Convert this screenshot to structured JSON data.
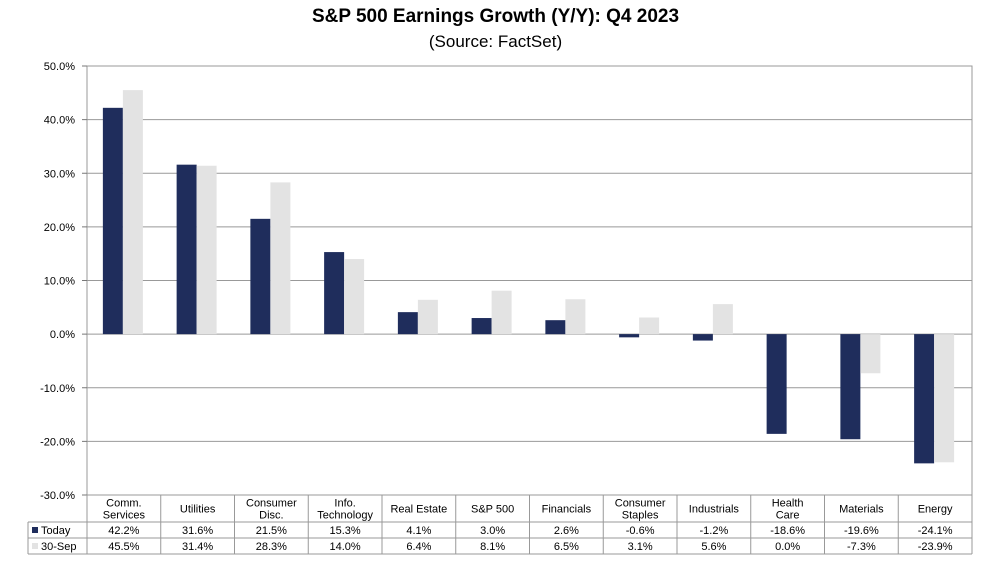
{
  "chart_data": {
    "type": "bar",
    "title": "S&P 500 Earnings Growth (Y/Y): Q4 2023",
    "subtitle": "(Source: FactSet)",
    "categories": [
      [
        "Comm.",
        "Services"
      ],
      [
        "Utilities"
      ],
      [
        "Consumer",
        "Disc."
      ],
      [
        "Info.",
        "Technology"
      ],
      [
        "Real Estate"
      ],
      [
        "S&P 500"
      ],
      [
        "Financials"
      ],
      [
        "Consumer",
        "Staples"
      ],
      [
        "Industrials"
      ],
      [
        "Health",
        "Care"
      ],
      [
        "Materials"
      ],
      [
        "Energy"
      ]
    ],
    "series": [
      {
        "name": "Today",
        "color": "#1f2d5c",
        "values": [
          42.2,
          31.6,
          21.5,
          15.3,
          4.1,
          3.0,
          2.6,
          -0.6,
          -1.2,
          -18.6,
          -19.6,
          -24.1
        ],
        "labels": [
          "42.2%",
          "31.6%",
          "21.5%",
          "15.3%",
          "4.1%",
          "3.0%",
          "2.6%",
          "-0.6%",
          "-1.2%",
          "-18.6%",
          "-19.6%",
          "-24.1%"
        ]
      },
      {
        "name": "30-Sep",
        "color": "#e3e3e3",
        "values": [
          45.5,
          31.4,
          28.3,
          14.0,
          6.4,
          8.1,
          6.5,
          3.1,
          5.6,
          0.0,
          -7.3,
          -23.9
        ],
        "labels": [
          "45.5%",
          "31.4%",
          "28.3%",
          "14.0%",
          "6.4%",
          "8.1%",
          "6.5%",
          "3.1%",
          "5.6%",
          "0.0%",
          "-7.3%",
          "-23.9%"
        ]
      }
    ],
    "ylim": [
      -30,
      50
    ],
    "yticks": [
      50,
      40,
      30,
      20,
      10,
      0,
      -10,
      -20,
      -30
    ],
    "ytick_labels": [
      "50.0%",
      "40.0%",
      "30.0%",
      "20.0%",
      "10.0%",
      "0.0%",
      "-10.0%",
      "-20.0%",
      "-30.0%"
    ],
    "grid": true,
    "legend": "data-table"
  }
}
